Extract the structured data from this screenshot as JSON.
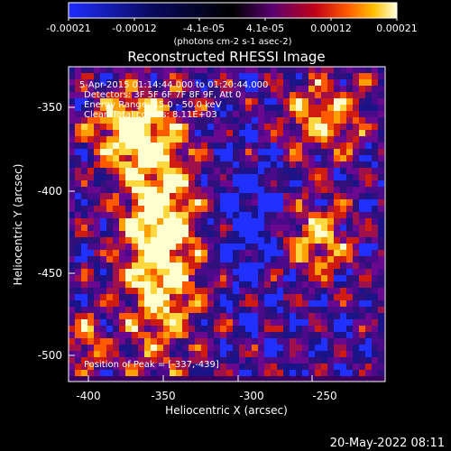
{
  "colorbar": {
    "tick_labels": [
      "-0.00021",
      "-0.00012",
      "-4.1e-05",
      "4.1e-05",
      "0.00012",
      "0.00021"
    ],
    "unit_label": "(photons cm-2 s-1 asec-2)"
  },
  "image": {
    "title": "Reconstructed RHESSI Image",
    "info": {
      "time_range": "5-Apr-2015 01:14:44.000 to 01:20:44.000",
      "detectors": "Detectors: 3F 5F 6F 7F 8F 9F, Att 0",
      "energy_range": "Energy Range: 25.0 - 50.0 keV",
      "clean_counts": "Clean     Total counts: 8.11E+03"
    },
    "peak_position": "Position of Peak = [-337,-439]",
    "x_axis_label": "Heliocentric X (arcsec)",
    "y_axis_label": "Heliocentric Y (arcsec)",
    "x_ticks": [
      "-400",
      "-350",
      "-300",
      "-250"
    ],
    "y_ticks": [
      "-350",
      "-400",
      "-450",
      "-500"
    ]
  },
  "footer": {
    "timestamp": "20-May-2022 08:11"
  },
  "colors": {
    "background": "#000000",
    "text": "#ffffff",
    "colormap": [
      "#1f2cff",
      "#0a0a60",
      "#000000",
      "#5a0070",
      "#c00018",
      "#ff5a00",
      "#ffc000",
      "#ffffe0"
    ]
  }
}
